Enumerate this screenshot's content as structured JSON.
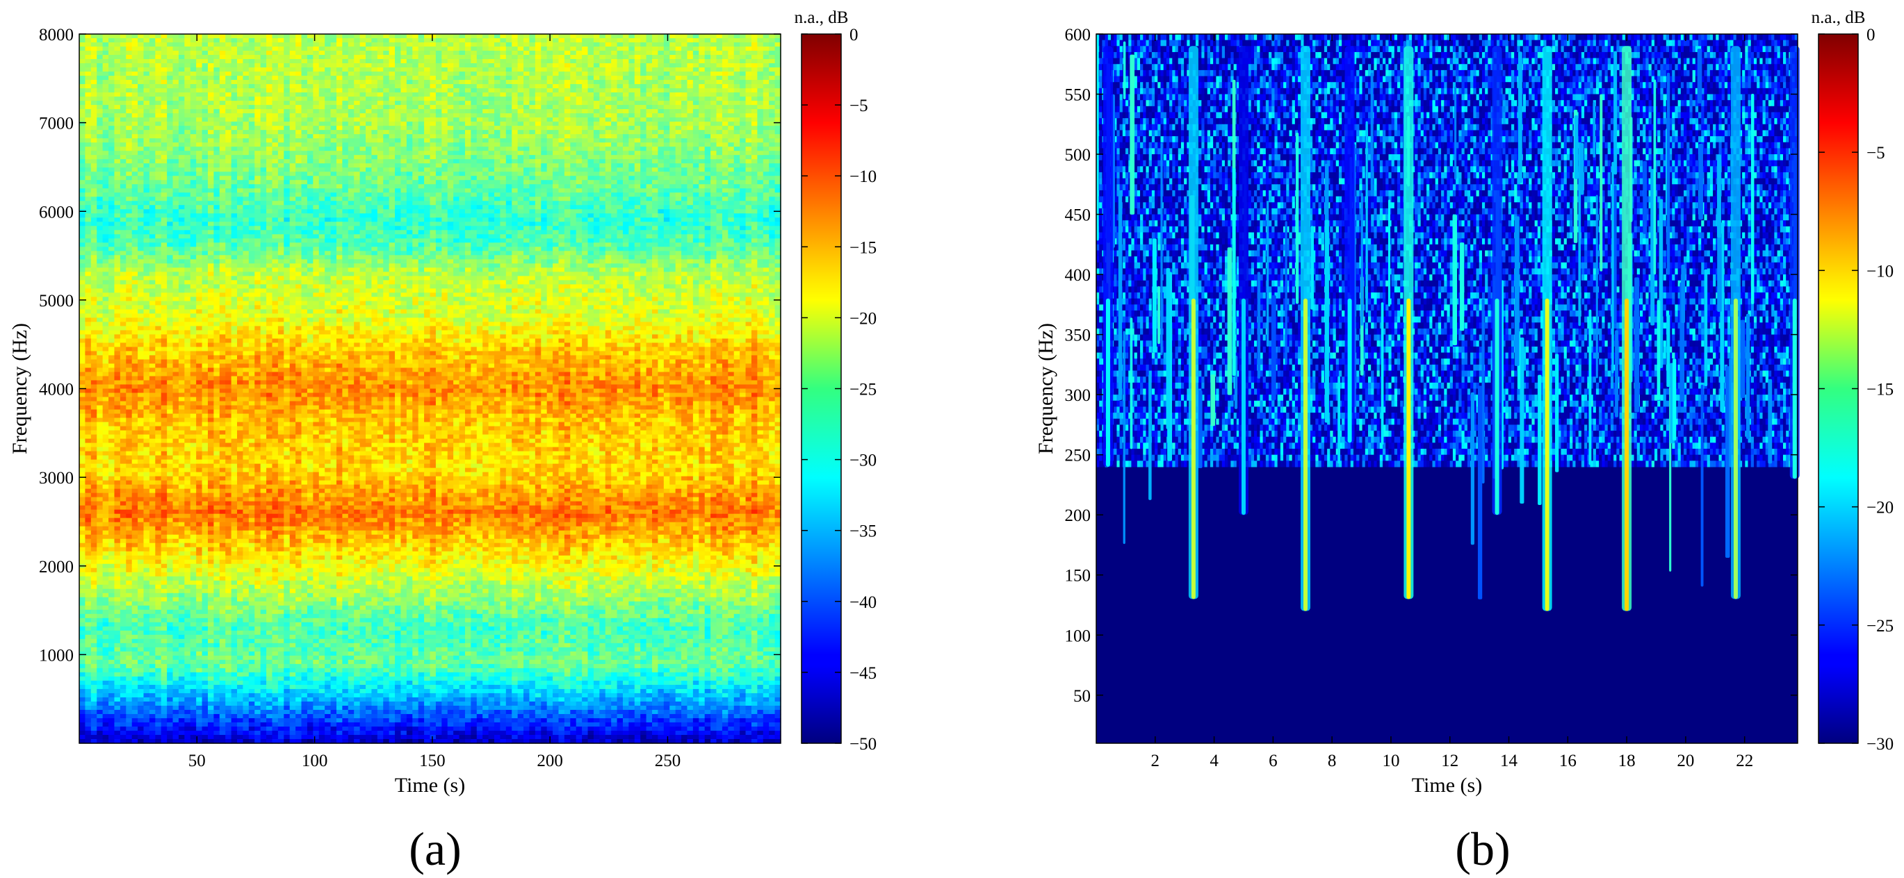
{
  "chart_data": [
    {
      "type": "heatmap",
      "panel_label": "(a)",
      "xlabel": "Time (s)",
      "ylabel": "Frequency (Hz)",
      "xlim": [
        0,
        298
      ],
      "ylim": [
        0,
        8000
      ],
      "x_ticks": [
        50,
        100,
        150,
        200,
        250
      ],
      "y_ticks": [
        1000,
        2000,
        3000,
        4000,
        5000,
        6000,
        7000,
        8000
      ],
      "colorbar": {
        "title": "n.a., dB",
        "colormap": "jet",
        "range": [
          -50,
          0
        ],
        "ticks": [
          0,
          -5,
          -10,
          -15,
          -20,
          -25,
          -30,
          -35,
          -40,
          -45,
          -50
        ]
      },
      "intensity_profile_db": [
        {
          "freq": 0,
          "db": -47
        },
        {
          "freq": 200,
          "db": -42
        },
        {
          "freq": 500,
          "db": -35
        },
        {
          "freq": 900,
          "db": -26
        },
        {
          "freq": 1300,
          "db": -28
        },
        {
          "freq": 1700,
          "db": -23
        },
        {
          "freq": 2100,
          "db": -18
        },
        {
          "freq": 2600,
          "db": -12
        },
        {
          "freq": 3100,
          "db": -17
        },
        {
          "freq": 3600,
          "db": -16
        },
        {
          "freq": 4000,
          "db": -13
        },
        {
          "freq": 4400,
          "db": -16
        },
        {
          "freq": 4800,
          "db": -20
        },
        {
          "freq": 5300,
          "db": -22
        },
        {
          "freq": 5600,
          "db": -27
        },
        {
          "freq": 5900,
          "db": -29
        },
        {
          "freq": 6300,
          "db": -26
        },
        {
          "freq": 7000,
          "db": -23
        },
        {
          "freq": 8000,
          "db": -22
        }
      ]
    },
    {
      "type": "heatmap",
      "panel_label": "(b)",
      "xlabel": "Time (s)",
      "ylabel": "Frequency (Hz)",
      "xlim": [
        0,
        23.8
      ],
      "ylim": [
        10,
        600
      ],
      "x_ticks": [
        2,
        4,
        6,
        8,
        10,
        12,
        14,
        16,
        18,
        20,
        22
      ],
      "y_ticks": [
        50,
        100,
        150,
        200,
        250,
        300,
        350,
        400,
        450,
        500,
        550,
        600
      ],
      "colorbar": {
        "title": "n.a., dB",
        "colormap": "jet",
        "range": [
          -30,
          0
        ],
        "ticks": [
          0,
          -5,
          -10,
          -15,
          -20,
          -25,
          -30
        ]
      },
      "background_db": -30,
      "noise_floor_upper_freq": 240,
      "events": [
        {
          "t": 0.4,
          "fmin": 240,
          "peak_db": -19
        },
        {
          "t": 3.3,
          "fmin": 130,
          "peak_db": -13
        },
        {
          "t": 5.0,
          "fmin": 200,
          "peak_db": -20
        },
        {
          "t": 7.1,
          "fmin": 120,
          "peak_db": -13
        },
        {
          "t": 8.6,
          "fmin": 260,
          "peak_db": -19
        },
        {
          "t": 10.6,
          "fmin": 130,
          "peak_db": -11
        },
        {
          "t": 13.6,
          "fmin": 200,
          "peak_db": -18
        },
        {
          "t": 15.3,
          "fmin": 120,
          "peak_db": -12
        },
        {
          "t": 18.0,
          "fmin": 120,
          "peak_db": -10
        },
        {
          "t": 21.7,
          "fmin": 130,
          "peak_db": -14
        },
        {
          "t": 23.7,
          "fmin": 230,
          "peak_db": -18
        }
      ]
    }
  ]
}
